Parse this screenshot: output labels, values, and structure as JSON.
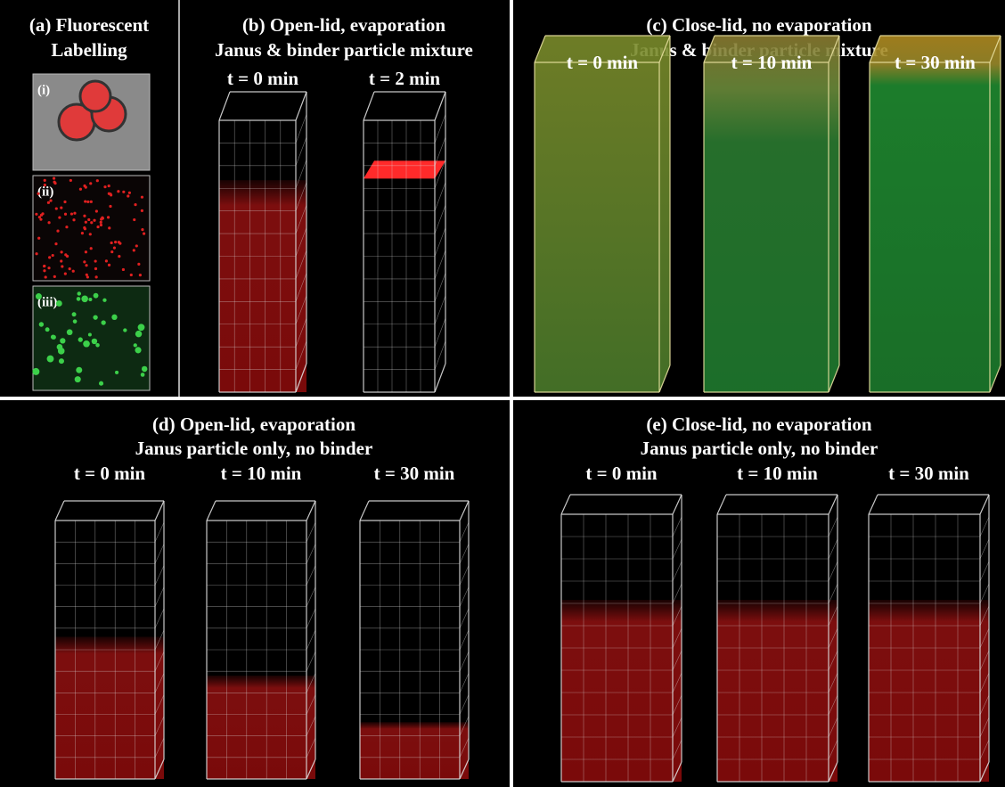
{
  "panel_a": {
    "title": [
      "(a) Fluorescent",
      "Labelling"
    ],
    "insets": [
      "(i)",
      "(ii)",
      "(iii)"
    ]
  },
  "panels": [
    {
      "title": [
        "(b) Open-lid, evaporation",
        "Janus & binder particle mixture"
      ],
      "times": [
        "t = 0 min",
        "t = 2 min"
      ]
    },
    {
      "title": [
        "(c) Close-lid, no evaporation",
        "Janus & binder particle mixture"
      ],
      "times": [
        "t = 0 min",
        "t = 10 min",
        "t = 30 min"
      ]
    },
    {
      "title": [
        "(d) Open-lid, evaporation",
        "Janus particle only, no binder"
      ],
      "times": [
        "t = 0 min",
        "t = 10 min",
        "t = 30 min"
      ]
    },
    {
      "title": [
        "(e) Close-lid, no evaporation",
        "Janus particle only, no binder"
      ],
      "times": [
        "t = 0 min",
        "t = 10 min",
        "t = 30 min"
      ]
    }
  ]
}
